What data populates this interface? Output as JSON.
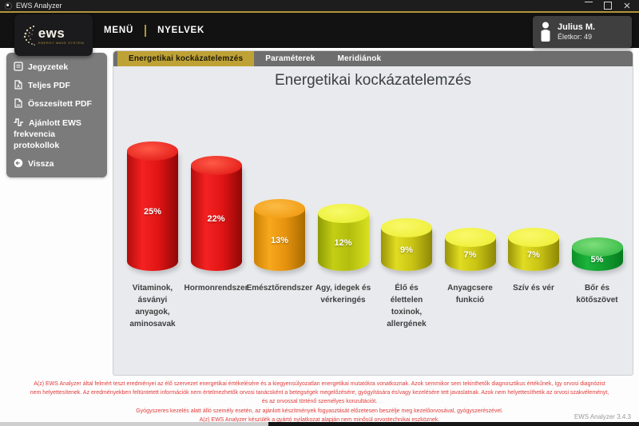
{
  "window": {
    "title": "EWS Analyzer",
    "controls": {
      "minimize": "minimize",
      "maximize": "maximize",
      "close": "close"
    }
  },
  "brand": {
    "logo_text": "ews",
    "logo_subtext": "ENERGY WAVE SYSTEM",
    "accent_gold": "#b1953a"
  },
  "menu": {
    "items": [
      {
        "label": "MENÜ"
      },
      {
        "label": "NYELVEK"
      }
    ]
  },
  "user": {
    "name": "Julius M.",
    "age_label": "Életkor: 49"
  },
  "sidebar": {
    "items": [
      {
        "label": "Jegyzetek",
        "icon": "notes-icon"
      },
      {
        "label": "Teljes PDF",
        "icon": "pdf-file-icon"
      },
      {
        "label": "Összesített PDF",
        "icon": "pdf-summary-icon"
      },
      {
        "label": "Ajánlott EWS frekvencia protokollok",
        "icon": "frequency-wave-icon"
      },
      {
        "label": "Vissza",
        "icon": "back-arrow-icon"
      }
    ]
  },
  "tabs": [
    {
      "label": "Energetikai kockázatelemzés",
      "active": true
    },
    {
      "label": "Paraméterek",
      "active": false
    },
    {
      "label": "Meridiánok",
      "active": false
    }
  ],
  "chart_data": {
    "type": "bar",
    "title": "Energetikai kockázatelemzés",
    "unit": "%",
    "categories": [
      "Vitaminok, ásványi anyagok, aminosavak",
      "Hormonrendszer",
      "Emésztőrendszer",
      "Agy, idegek és vérkeringés",
      "Élő és élettelen toxinok, allergének",
      "Anyagcsere funkció",
      "Szív és vér",
      "Bőr és kötőszövet"
    ],
    "values": [
      25,
      22,
      13,
      12,
      9,
      7,
      7,
      5
    ],
    "ylim": [
      0,
      25
    ],
    "grid": false,
    "legend": "none",
    "bars": [
      {
        "label": "Vitaminok,\násványi\nanyagok,\naminosavak",
        "value": 25,
        "colors": {
          "top_light": "#ff5a47",
          "top_dark": "#dd1010",
          "side_dark": "#b30c0c",
          "side_light": "#f42222",
          "side_mid": "#e01414",
          "side_edge": "#8f0707"
        }
      },
      {
        "label": "Hormonrendszer",
        "value": 22,
        "colors": {
          "top_light": "#ff5a47",
          "top_dark": "#dd1010",
          "side_dark": "#b30c0c",
          "side_light": "#f42222",
          "side_mid": "#e01414",
          "side_edge": "#8f0707"
        }
      },
      {
        "label": "Emésztőrendszer",
        "value": 13,
        "colors": {
          "top_light": "#fcbb46",
          "top_dark": "#ee9506",
          "side_dark": "#cc8104",
          "side_light": "#f7a81c",
          "side_mid": "#e5920e",
          "side_edge": "#a96b00"
        }
      },
      {
        "label": "Agy, idegek és\nvérkeringés",
        "value": 12,
        "colors": {
          "top_light": "#f8f96a",
          "top_dark": "#e7ee28",
          "side_dark": "#8e9a06",
          "side_light": "#c4ce14",
          "side_mid": "#b2bd0e",
          "side_edge": "#d8e020"
        }
      },
      {
        "label": "Élő és\nélettelen\ntoxinok,\nallergének",
        "value": 9,
        "colors": {
          "top_light": "#f9f96a",
          "top_dark": "#ecec2e",
          "side_dark": "#9a9408",
          "side_light": "#e0dc22",
          "side_mid": "#c9c314",
          "side_edge": "#8d8806"
        }
      },
      {
        "label": "Anyagcsere\nfunkció",
        "value": 7,
        "colors": {
          "top_light": "#f9f96a",
          "top_dark": "#ecec2e",
          "side_dark": "#9a9408",
          "side_light": "#e0dc22",
          "side_mid": "#c9c314",
          "side_edge": "#8d8806"
        }
      },
      {
        "label": "Szív és vér",
        "value": 7,
        "colors": {
          "top_light": "#f9f96a",
          "top_dark": "#ecec2e",
          "side_dark": "#9a9408",
          "side_light": "#e0dc22",
          "side_mid": "#c9c314",
          "side_edge": "#8d8806"
        }
      },
      {
        "label": "Bőr és\nkötőszövet",
        "value": 5,
        "colors": {
          "top_light": "#7ede7c",
          "top_dark": "#28b23a",
          "side_dark": "#0c8f26",
          "side_light": "#1cb33c",
          "side_mid": "#129e2f",
          "side_edge": "#067a1e"
        }
      }
    ]
  },
  "disclaimer": {
    "color": "#e23b3b",
    "lines": [
      "A(z) EWS Analyzer által felmért teszt eredményei az élő szervezet energetikai értékelésére és a kiegyensúlyozatlan energetikai mutatókra vonatkoznak. Azok semmikor sem tekinthetők diagnosztikus értékűnek, így orvosi diagnózist",
      "nem helyettesítenek. Az eredményekben feltüntetett információk nem értelmezhetők orvosi tanácsként a betegségek megelőzésére, gyógyítására és/vagy kezelésére tett javaslatnak. Azok nem helyettesíthetik az orvosi szakvéleményt,",
      "és az orvossal történő személyes konzultációt.",
      "Gyógyszeres kezelés alatt álló személy esetén, az ajánlott készítmények fogyasztását előzetesen beszélje meg kezelőorvosával, gyógyszerészével.",
      "A(z) EWS Analyzer készülék a gyártó nyilatkozat alapján nem minősül orvostechnikai eszköznek."
    ]
  },
  "footer": {
    "version": "EWS Analyzer 3.4.3"
  }
}
